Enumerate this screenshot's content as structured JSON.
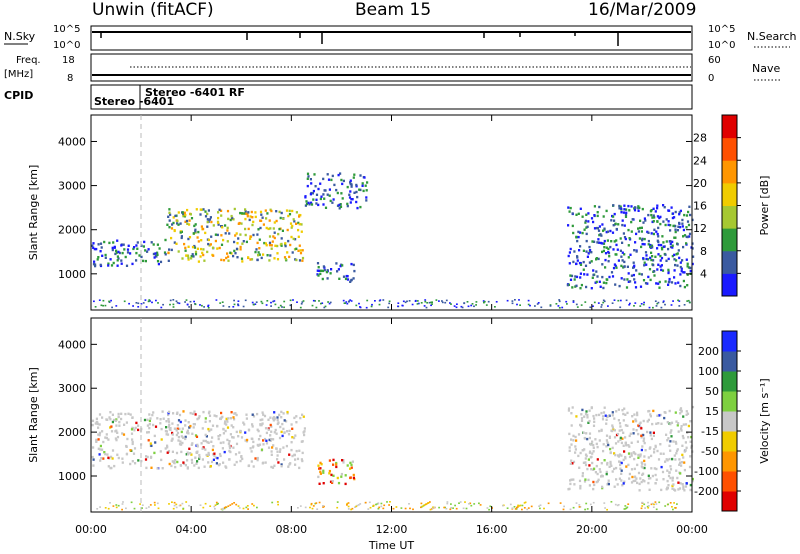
{
  "header": {
    "station": "Unwin (fitACF)",
    "beam": "Beam 15",
    "date": "16/Mar/2009"
  },
  "strips": {
    "nsky": {
      "label": "N.Sky",
      "top_tick": "10^5",
      "bottom_tick": "10^0",
      "right_label": "N.Search",
      "right_top": "10^5",
      "right_bottom": "10^0"
    },
    "freq": {
      "label_line1": "Freq.",
      "label_line2": "[MHz]",
      "top_tick": "18",
      "bottom_tick": "8",
      "right_label": "Nave",
      "right_top": "60",
      "right_bottom": "0"
    },
    "cpid": {
      "label": "CPID",
      "entries": [
        "Stereo -6401",
        "Stereo -6401 RF"
      ]
    }
  },
  "chart_data": [
    {
      "type": "heatmap",
      "title": "",
      "xlabel": "Time UT",
      "ylabel": "Slant Range [km]",
      "x_ticks": [
        "00:00",
        "04:00",
        "08:00",
        "12:00",
        "16:00",
        "20:00",
        "00:00"
      ],
      "x_range_hours": [
        0,
        24
      ],
      "y_ticks": [
        1000,
        2000,
        3000,
        4000
      ],
      "ylim": [
        180,
        4600
      ],
      "colorbar": {
        "label": "Power [dB]",
        "ticks": [
          4,
          8,
          12,
          16,
          20,
          24,
          28
        ],
        "colors": [
          "#1a1aff",
          "#3a5aa0",
          "#2e9a3a",
          "#a6c832",
          "#f0cc00",
          "#ff9600",
          "#ff5000",
          "#e00000"
        ]
      },
      "echo_regions": [
        {
          "hours": [
            0,
            3
          ],
          "range_km": [
            1200,
            1800
          ],
          "level": "12 dB"
        },
        {
          "hours": [
            3,
            8.5
          ],
          "range_km": [
            1300,
            2500
          ],
          "level": "20-24 dB"
        },
        {
          "hours": [
            8.5,
            11
          ],
          "range_km": [
            2500,
            3300
          ],
          "level": "4-8 dB"
        },
        {
          "hours": [
            9,
            10.5
          ],
          "range_km": [
            800,
            1300
          ],
          "level": "12-16 dB"
        },
        {
          "hours": [
            19,
            24
          ],
          "range_km": [
            700,
            2600
          ],
          "level": "8-16 dB"
        }
      ]
    },
    {
      "type": "heatmap",
      "title": "",
      "xlabel": "Time UT",
      "ylabel": "Slant Range [km]",
      "x_ticks": [
        "00:00",
        "04:00",
        "08:00",
        "12:00",
        "16:00",
        "20:00",
        "00:00"
      ],
      "x_range_hours": [
        0,
        24
      ],
      "y_ticks": [
        1000,
        2000,
        3000,
        4000
      ],
      "ylim": [
        180,
        4600
      ],
      "colorbar": {
        "label": "Velocity [m s⁻¹]",
        "ticks": [
          200,
          100,
          50,
          15,
          -15,
          -50,
          -100,
          -200
        ],
        "colors": [
          "#1a2aff",
          "#3a5aa0",
          "#2e9a3a",
          "#7ed040",
          "#c8c8c8",
          "#f0cc00",
          "#ff9600",
          "#ff5000",
          "#e00000"
        ]
      },
      "echo_regions": [
        {
          "hours": [
            0,
            8.5
          ],
          "range_km": [
            1200,
            2500
          ],
          "level": "-15 to 15 m/s"
        },
        {
          "hours": [
            9,
            10.5
          ],
          "range_km": [
            800,
            1400
          ],
          "level": "-200 to 50 m/s"
        },
        {
          "hours": [
            19,
            24
          ],
          "range_km": [
            700,
            2600
          ],
          "level": "-15 to 15 m/s"
        }
      ]
    }
  ]
}
